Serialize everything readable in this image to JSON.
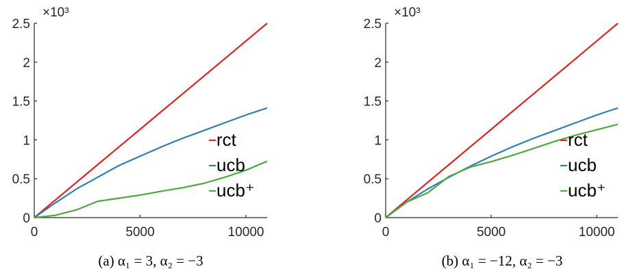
{
  "chart_data": [
    {
      "type": "line",
      "caption": "(a) α₁ = 3, α₂ = −3",
      "xlim": [
        0,
        11000
      ],
      "ylim": [
        0,
        2.5
      ],
      "y_multiplier": "×10³",
      "x_ticks": [
        0,
        5000,
        10000
      ],
      "y_ticks": [
        0,
        0.5,
        1,
        1.5,
        2,
        2.5
      ],
      "legend_position": "right",
      "grid": false,
      "series": [
        {
          "name": "rct",
          "color": "#e3201c",
          "x": [
            0,
            1000,
            2000,
            3000,
            4000,
            5000,
            6000,
            7000,
            8000,
            9000,
            10000,
            11000
          ],
          "values": [
            0,
            0.227,
            0.455,
            0.682,
            0.909,
            1.136,
            1.364,
            1.591,
            1.818,
            2.045,
            2.273,
            2.5
          ]
        },
        {
          "name": "ucb",
          "color": "#2e7ebc",
          "x": [
            0,
            1000,
            2000,
            3000,
            4000,
            5000,
            6000,
            7000,
            8000,
            9000,
            10000,
            11000
          ],
          "values": [
            0,
            0.19,
            0.37,
            0.52,
            0.67,
            0.79,
            0.91,
            1.02,
            1.12,
            1.22,
            1.32,
            1.41
          ]
        },
        {
          "name": "ucb⁺",
          "color": "#4aaa3c",
          "x": [
            0,
            1000,
            2000,
            3000,
            4000,
            5000,
            6000,
            7000,
            8000,
            9000,
            10000,
            11000
          ],
          "values": [
            0,
            0.03,
            0.1,
            0.21,
            0.25,
            0.29,
            0.34,
            0.385,
            0.44,
            0.52,
            0.61,
            0.725
          ]
        }
      ]
    },
    {
      "type": "line",
      "caption": "(b) α₁ = −12, α₂ = −3",
      "xlim": [
        0,
        11000
      ],
      "ylim": [
        0,
        2.5
      ],
      "y_multiplier": "×10³",
      "x_ticks": [
        0,
        5000,
        10000
      ],
      "y_ticks": [
        0,
        0.5,
        1,
        1.5,
        2,
        2.5
      ],
      "legend_position": "right",
      "grid": false,
      "series": [
        {
          "name": "rct",
          "color": "#e3201c",
          "x": [
            0,
            1000,
            2000,
            3000,
            4000,
            5000,
            6000,
            7000,
            8000,
            9000,
            10000,
            11000
          ],
          "values": [
            0,
            0.227,
            0.455,
            0.682,
            0.909,
            1.136,
            1.364,
            1.591,
            1.818,
            2.045,
            2.273,
            2.5
          ]
        },
        {
          "name": "ucb",
          "color": "#2e7ebc",
          "x": [
            0,
            1000,
            2000,
            3000,
            4000,
            5000,
            6000,
            7000,
            8000,
            9000,
            10000,
            11000
          ],
          "values": [
            0,
            0.2,
            0.37,
            0.52,
            0.66,
            0.79,
            0.91,
            1.02,
            1.12,
            1.22,
            1.32,
            1.41
          ]
        },
        {
          "name": "ucb⁺",
          "color": "#4aaa3c",
          "x": [
            0,
            1000,
            2000,
            3000,
            4000,
            5000,
            6000,
            7000,
            8000,
            9000,
            10000,
            11000
          ],
          "values": [
            0,
            0.2,
            0.32,
            0.53,
            0.65,
            0.72,
            0.8,
            0.89,
            0.98,
            1.06,
            1.13,
            1.2
          ]
        }
      ]
    }
  ]
}
